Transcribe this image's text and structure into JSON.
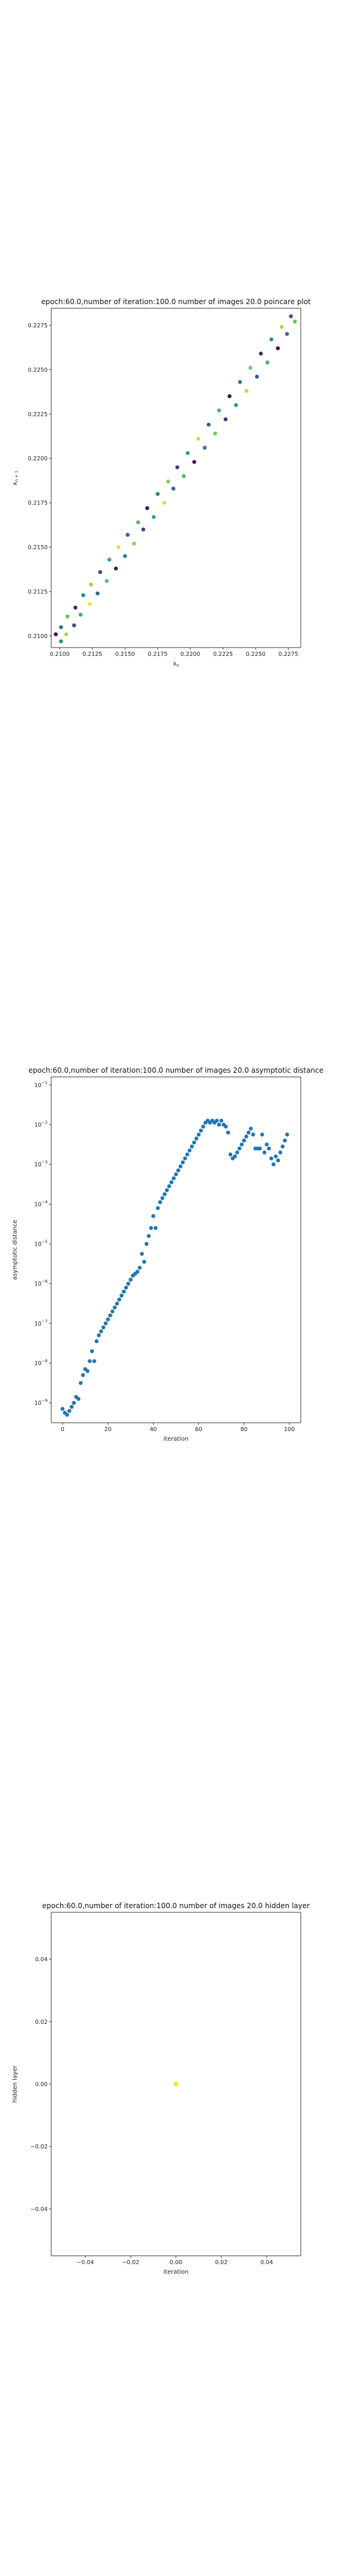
{
  "chart_data": [
    {
      "type": "scatter",
      "title": "epoch:60.0,number of iteration:100.0 number of images 20.0 poincare plot",
      "xlabel": "x_n",
      "ylabel": "x_{n+1}",
      "xlim": [
        0.20935,
        0.22845
      ],
      "ylim": [
        0.20935,
        0.22845
      ],
      "x_ticks": [
        0.21,
        0.2125,
        0.215,
        0.2175,
        0.22,
        0.2225,
        0.225,
        0.2275
      ],
      "x_tick_labels": [
        "0.2100",
        "0.2125",
        "0.2150",
        "0.2175",
        "0.2200",
        "0.2225",
        "0.2250",
        "0.2275"
      ],
      "y_ticks": [
        0.21,
        0.2125,
        0.215,
        0.2175,
        0.22,
        0.2225,
        0.225,
        0.2275
      ],
      "y_tick_labels": [
        "0.2100",
        "0.2125",
        "0.2150",
        "0.2175",
        "0.2200",
        "0.2225",
        "0.2250",
        "0.2275"
      ],
      "series": [
        {
          "colormap": "viridis",
          "points_upper": [
            [
              0.2097,
              0.2101
            ],
            [
              0.2101,
              0.2105
            ],
            [
              0.2106,
              0.2111
            ],
            [
              0.2112,
              0.2116
            ],
            [
              0.2118,
              0.2123
            ],
            [
              0.2124,
              0.2129
            ],
            [
              0.2131,
              0.2136
            ],
            [
              0.2138,
              0.2143
            ],
            [
              0.2145,
              0.215
            ],
            [
              0.2152,
              0.2157
            ],
            [
              0.216,
              0.2164
            ],
            [
              0.2167,
              0.2172
            ],
            [
              0.2175,
              0.218
            ],
            [
              0.2183,
              0.2187
            ],
            [
              0.219,
              0.2195
            ],
            [
              0.2198,
              0.2203
            ],
            [
              0.2206,
              0.2211
            ],
            [
              0.2214,
              0.2219
            ],
            [
              0.2222,
              0.2227
            ],
            [
              0.223,
              0.2235
            ],
            [
              0.2238,
              0.2243
            ],
            [
              0.2246,
              0.2251
            ],
            [
              0.2254,
              0.2259
            ],
            [
              0.2262,
              0.2267
            ],
            [
              0.227,
              0.2274
            ],
            [
              0.2277,
              0.228
            ]
          ],
          "points_lower": [
            [
              0.2101,
              0.2097
            ],
            [
              0.2105,
              0.2101
            ],
            [
              0.2111,
              0.2106
            ],
            [
              0.2116,
              0.2112
            ],
            [
              0.2123,
              0.2118
            ],
            [
              0.2129,
              0.2124
            ],
            [
              0.2136,
              0.2131
            ],
            [
              0.2143,
              0.2138
            ],
            [
              0.215,
              0.2145
            ],
            [
              0.2157,
              0.2152
            ],
            [
              0.2164,
              0.216
            ],
            [
              0.2172,
              0.2167
            ],
            [
              0.218,
              0.2175
            ],
            [
              0.2187,
              0.2183
            ],
            [
              0.2195,
              0.219
            ],
            [
              0.2203,
              0.2198
            ],
            [
              0.2211,
              0.2206
            ],
            [
              0.2219,
              0.2214
            ],
            [
              0.2227,
              0.2222
            ],
            [
              0.2235,
              0.223
            ],
            [
              0.2243,
              0.2238
            ],
            [
              0.2251,
              0.2246
            ],
            [
              0.2259,
              0.2254
            ],
            [
              0.2267,
              0.2262
            ],
            [
              0.2274,
              0.227
            ],
            [
              0.228,
              0.2277
            ]
          ]
        }
      ],
      "grid": false
    },
    {
      "type": "scatter",
      "title": "epoch:60.0,number of iteration:100.0  number of images 20.0 asymptotic distance",
      "xlabel": "iteration",
      "ylabel": "asymptotic distance",
      "xlim": [
        -5,
        105
      ],
      "ylim_log10": [
        -9.5,
        -0.8
      ],
      "yscale": "log",
      "x_ticks": [
        0,
        20,
        40,
        60,
        80,
        100
      ],
      "x_tick_labels": [
        "0",
        "20",
        "40",
        "60",
        "80",
        "100"
      ],
      "y_ticks_log10": [
        -9,
        -8,
        -7,
        -6,
        -5,
        -4,
        -3,
        -2,
        -1
      ],
      "y_tick_labels": [
        "10^-9",
        "10^-8",
        "10^-7",
        "10^-6",
        "10^-5",
        "10^-4",
        "10^-3",
        "10^-2",
        "10^-1"
      ],
      "series": [
        {
          "color": "#1f77b4",
          "log10_values": [
            -9.15,
            -9.25,
            -9.3,
            -9.2,
            -9.1,
            -9.0,
            -8.85,
            -8.9,
            -8.5,
            -8.3,
            -8.15,
            -8.2,
            -7.95,
            -7.7,
            -7.95,
            -7.45,
            -7.3,
            -7.2,
            -7.1,
            -7.0,
            -6.9,
            -6.8,
            -6.7,
            -6.6,
            -6.5,
            -6.4,
            -6.3,
            -6.2,
            -6.1,
            -6.0,
            -5.9,
            -5.8,
            -5.75,
            -5.7,
            -5.6,
            -5.25,
            -5.45,
            -5.0,
            -4.8,
            -4.6,
            -4.3,
            -4.6,
            -4.1,
            -3.95,
            -3.85,
            -3.75,
            -3.65,
            -3.55,
            -3.45,
            -3.35,
            -3.25,
            -3.15,
            -3.05,
            -2.95,
            -2.85,
            -2.75,
            -2.65,
            -2.55,
            -2.45,
            -2.35,
            -2.25,
            -2.15,
            -2.05,
            -1.95,
            -1.9,
            -1.95,
            -1.9,
            -1.95,
            -1.9,
            -2.0,
            -1.9,
            -2.0,
            -2.05,
            -2.2,
            -2.75,
            -2.85,
            -2.8,
            -2.7,
            -2.6,
            -2.5,
            -2.4,
            -2.3,
            -2.2,
            -2.1,
            -2.25,
            -2.6,
            -2.6,
            -2.6,
            -2.25,
            -2.7,
            -2.5,
            -2.6,
            -2.85,
            -3.0,
            -2.8,
            -2.9,
            -2.7,
            -2.55,
            -2.4,
            -2.25
          ]
        }
      ],
      "grid": false
    },
    {
      "type": "scatter",
      "title": "epoch:60.0,number of iteration:100.0  number of images 20.0 hidden layer",
      "xlabel": "iteration",
      "ylabel": "hidden layer",
      "xlim": [
        -0.055,
        0.055
      ],
      "ylim": [
        -0.055,
        0.055
      ],
      "x_ticks": [
        -0.04,
        -0.02,
        0.0,
        0.02,
        0.04
      ],
      "x_tick_labels": [
        "−0.04",
        "−0.02",
        "0.00",
        "0.02",
        "0.04"
      ],
      "y_ticks": [
        -0.04,
        -0.02,
        0.0,
        0.02,
        0.04
      ],
      "y_tick_labels": [
        "−0.04",
        "−0.02",
        "0.00",
        "0.02",
        "0.04"
      ],
      "series": [
        {
          "color": "#fde725",
          "points": [
            [
              0.0,
              0.0
            ]
          ]
        }
      ],
      "grid": false
    }
  ]
}
